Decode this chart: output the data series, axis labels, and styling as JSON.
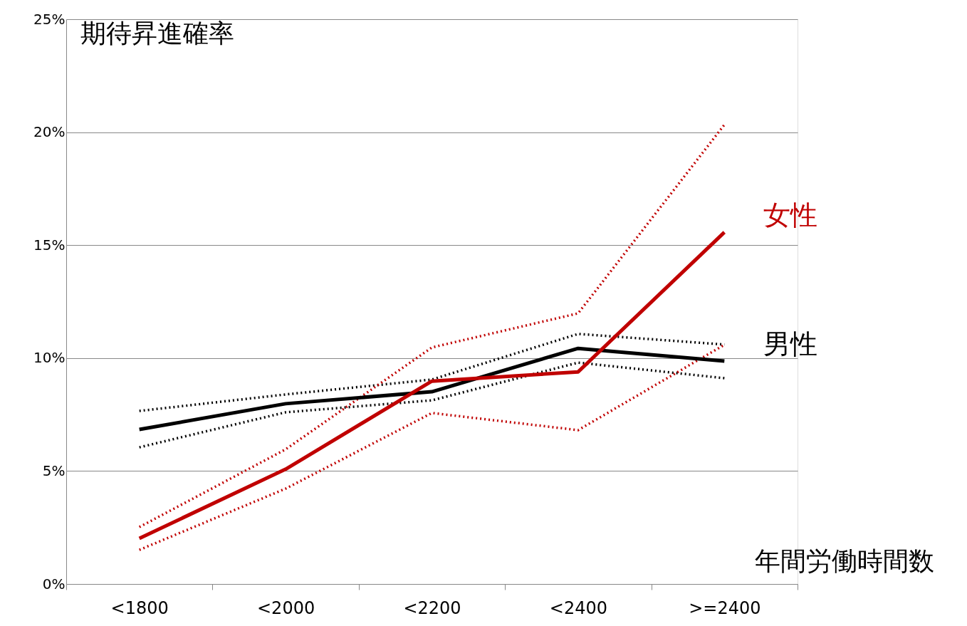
{
  "chart_data": {
    "type": "line",
    "ylabel": "期待昇進確率",
    "xlabel": "年間労働時間数",
    "categories": [
      "<1800",
      "<2000",
      "<2200",
      "<2400",
      ">=2400"
    ],
    "ylim": [
      0,
      25
    ],
    "yticks": [
      {
        "value": 0,
        "label": "0%"
      },
      {
        "value": 5,
        "label": "5%"
      },
      {
        "value": 10,
        "label": "10%"
      },
      {
        "value": 15,
        "label": "15%"
      },
      {
        "value": 20,
        "label": "20%"
      },
      {
        "value": 25,
        "label": "25%"
      }
    ],
    "grid": "y",
    "marker": "none",
    "series": [
      {
        "color": "#000000",
        "line_style": "dotted",
        "values": [
          7.66,
          8.39,
          9.05,
          11.07,
          10.6
        ]
      },
      {
        "color": "#000000",
        "line_style": "dotted",
        "values": [
          6.05,
          7.6,
          8.13,
          9.8,
          9.11
        ]
      },
      {
        "color": "#c00000",
        "line_style": "dotted",
        "values": [
          2.52,
          5.96,
          10.47,
          11.98,
          20.33
        ]
      },
      {
        "color": "#c00000",
        "line_style": "dotted",
        "values": [
          1.51,
          4.22,
          7.57,
          6.81,
          10.59
        ]
      },
      {
        "name": "男性",
        "color": "#000000",
        "line_style": "solid",
        "values": [
          6.84,
          7.98,
          8.51,
          10.43,
          9.87
        ]
      },
      {
        "name": "女性",
        "color": "#c00000",
        "line_style": "solid",
        "values": [
          2.02,
          5.08,
          8.98,
          9.39,
          15.57
        ]
      }
    ]
  }
}
